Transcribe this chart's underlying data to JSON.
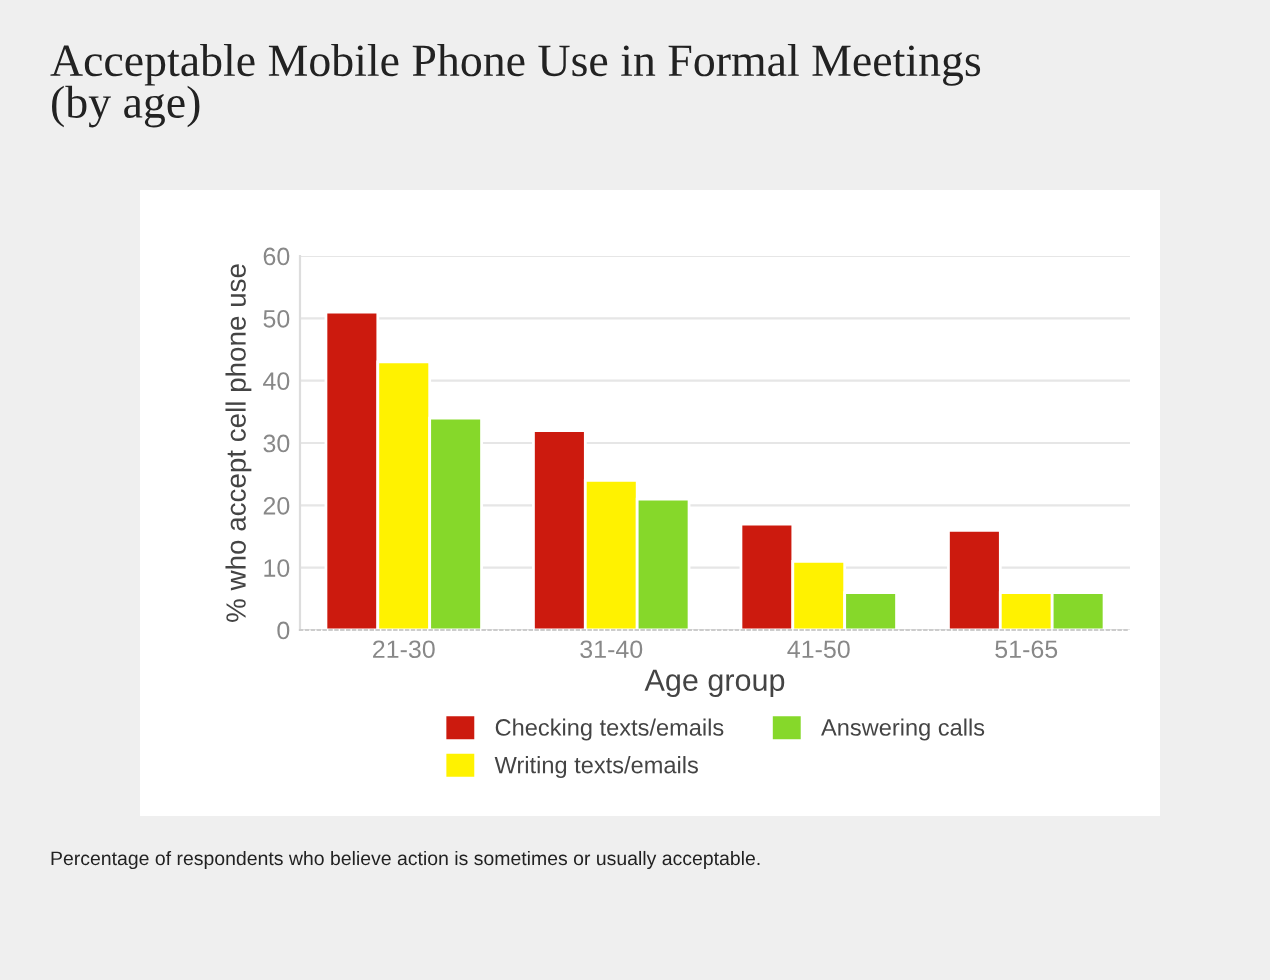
{
  "chart_data": {
    "type": "bar",
    "title": "Acceptable Mobile Phone Use in Formal Meetings\n(by age)",
    "xlabel": "Age group",
    "ylabel": "% who accept cell phone use",
    "categories": [
      "21-30",
      "31-40",
      "41-50",
      "51-65"
    ],
    "series": [
      {
        "name": "Checking texts/emails",
        "color": "#cc1a0e",
        "values": [
          51,
          32,
          17,
          16
        ]
      },
      {
        "name": "Writing texts/emails",
        "color": "#fff200",
        "values": [
          43,
          24,
          11,
          6
        ]
      },
      {
        "name": "Answering calls",
        "color": "#86d82a",
        "values": [
          34,
          21,
          6,
          6
        ]
      }
    ],
    "ylim": [
      0,
      60
    ],
    "yticks": [
      0,
      10,
      20,
      30,
      40,
      50,
      60
    ],
    "grid": "y",
    "legend": "bottom",
    "annotations": [
      "Percentage of respondents who believe action is sometimes or usually acceptable."
    ]
  }
}
